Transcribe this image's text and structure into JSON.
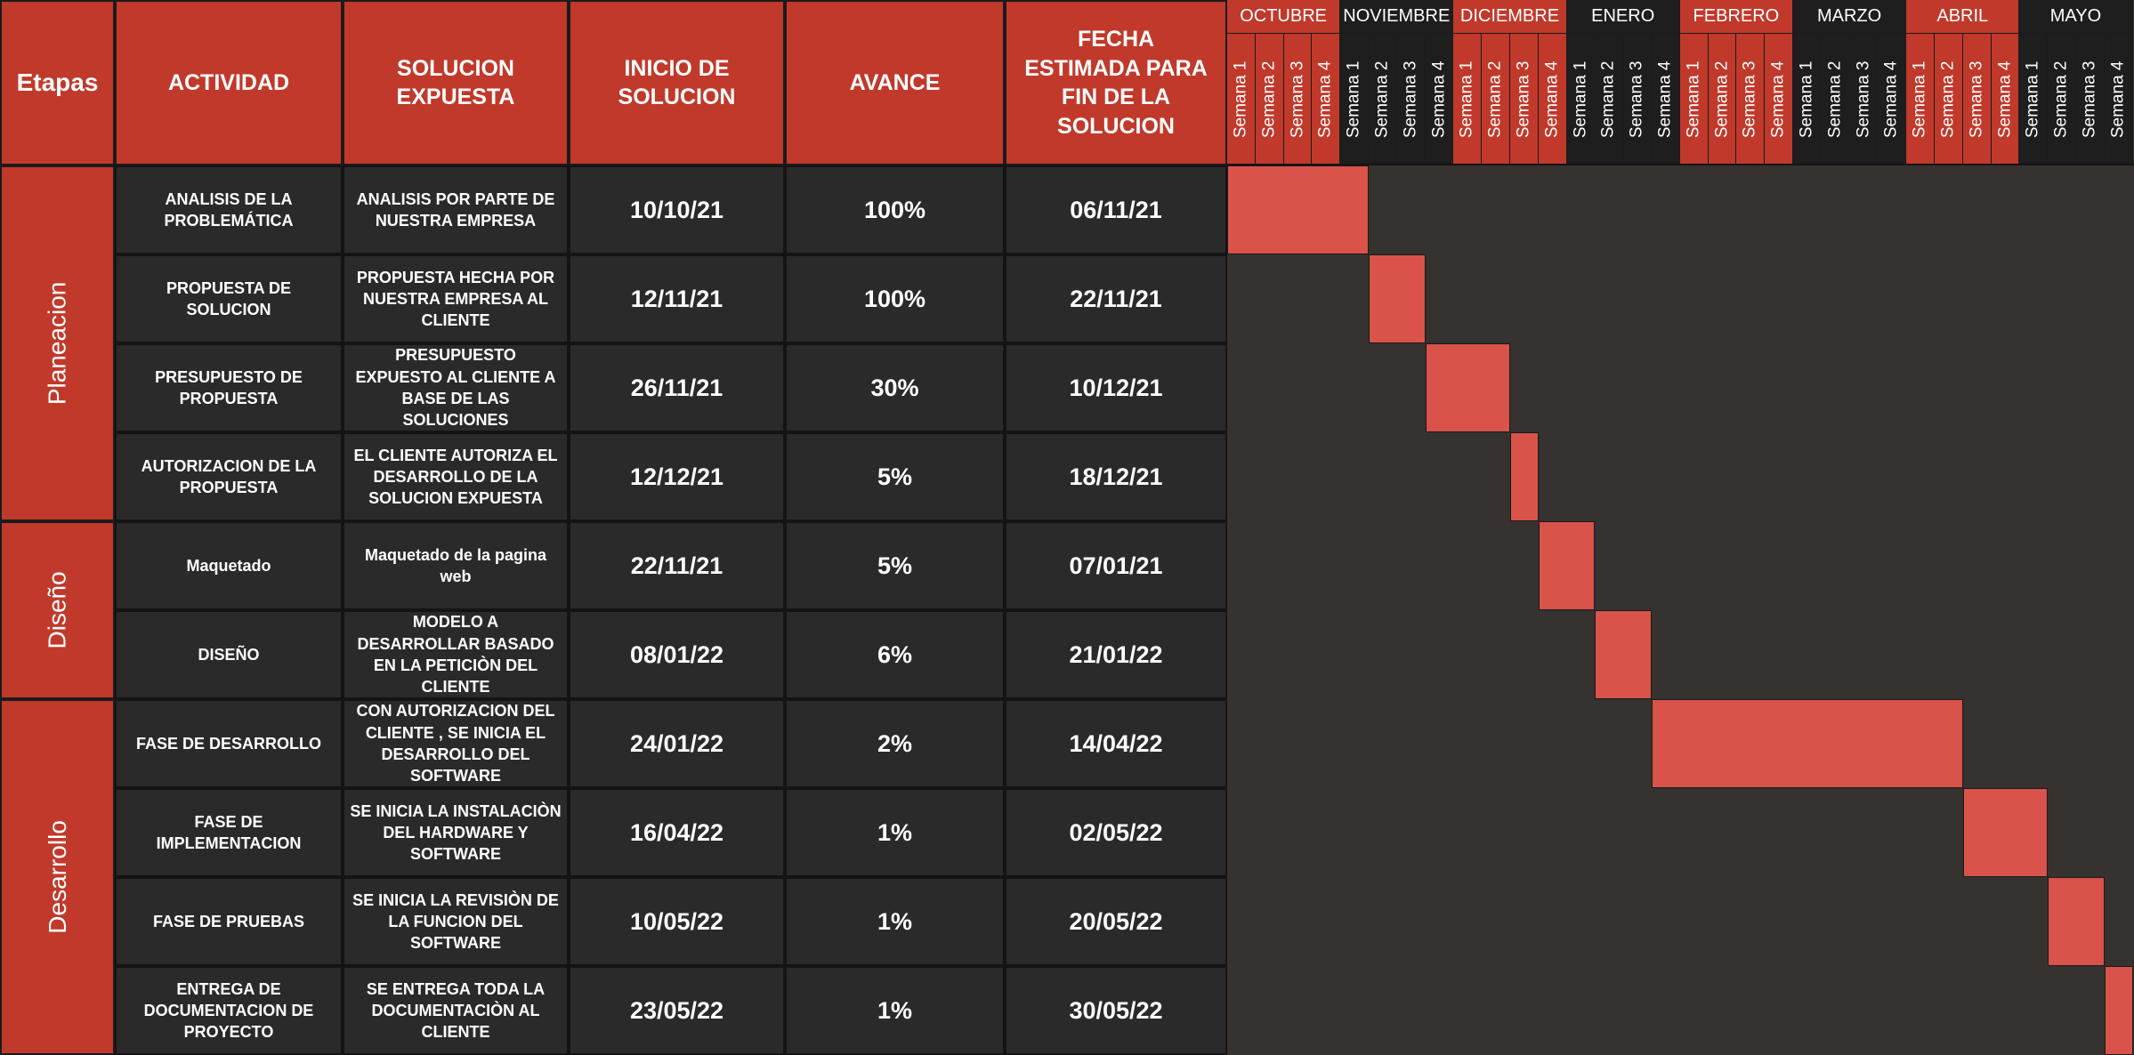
{
  "headers": {
    "etapas": "Etapas",
    "actividad": "ACTIVIDAD",
    "solucion": "SOLUCION EXPUESTA",
    "inicio": "INICIO DE SOLUCION",
    "avance": "AVANCE",
    "fin": "FECHA ESTIMADA PARA FIN DE LA SOLUCION"
  },
  "stages": [
    {
      "name": "Planeacion",
      "rows": 4
    },
    {
      "name": "Diseño",
      "rows": 2
    },
    {
      "name": "Desarrollo",
      "rows": 4
    }
  ],
  "months": [
    {
      "name": "OCTUBRE",
      "color": "#c0392b"
    },
    {
      "name": "NOVIEMBRE",
      "color": "#1e1e1e"
    },
    {
      "name": "DICIEMBRE",
      "color": "#c0392b"
    },
    {
      "name": "ENERO",
      "color": "#1e1e1e"
    },
    {
      "name": "FEBRERO",
      "color": "#c0392b"
    },
    {
      "name": "MARZO",
      "color": "#1e1e1e"
    },
    {
      "name": "ABRIL",
      "color": "#c0392b"
    },
    {
      "name": "MAYO",
      "color": "#1e1e1e"
    }
  ],
  "week_labels": [
    "Semana 1",
    "Semana 2",
    "Semana 3",
    "Semana 4"
  ],
  "colors": {
    "header_red": "#c0392b",
    "bar_red": "#d9534a",
    "row_bg": "#2a2a2a",
    "gantt_bg": "#353230"
  },
  "chart_data": {
    "type": "table",
    "rows": [
      {
        "actividad": "ANALISIS DE LA PROBLEMÁTICA",
        "solucion": "ANALISIS POR PARTE DE NUESTRA EMPRESA",
        "inicio": "10/10/21",
        "avance": "100%",
        "fin": "06/11/21",
        "start_week": 0,
        "end_week": 5
      },
      {
        "actividad": "PROPUESTA DE SOLUCION",
        "solucion": "PROPUESTA HECHA POR NUESTRA EMPRESA AL CLIENTE",
        "inicio": "12/11/21",
        "avance": "100%",
        "fin": "22/11/21",
        "start_week": 5,
        "end_week": 7
      },
      {
        "actividad": "PRESUPUESTO DE PROPUESTA",
        "solucion": "PRESUPUESTO EXPUESTO AL CLIENTE A BASE DE LAS SOLUCIONES",
        "inicio": "26/11/21",
        "avance": "30%",
        "fin": "10/12/21",
        "start_week": 7,
        "end_week": 10
      },
      {
        "actividad": "AUTORIZACION DE LA PROPUESTA",
        "solucion": "EL CLIENTE AUTORIZA EL DESARROLLO DE LA SOLUCION EXPUESTA",
        "inicio": "12/12/21",
        "avance": "5%",
        "fin": "18/12/21",
        "start_week": 10,
        "end_week": 11
      },
      {
        "actividad": "Maquetado",
        "solucion": "Maquetado de la pagina web",
        "inicio": "22/11/21",
        "avance": "5%",
        "fin": "07/01/21",
        "start_week": 11,
        "end_week": 13
      },
      {
        "actividad": "DISEÑO",
        "solucion": "MODELO A DESARROLLAR BASADO EN LA PETICIÒN DEL CLIENTE",
        "inicio": "08/01/22",
        "avance": "6%",
        "fin": "21/01/22",
        "start_week": 13,
        "end_week": 15
      },
      {
        "actividad": "FASE DE DESARROLLO",
        "solucion": "CON AUTORIZACION DEL CLIENTE , SE INICIA EL DESARROLLO DEL SOFTWARE",
        "inicio": "24/01/22",
        "avance": "2%",
        "fin": "14/04/22",
        "start_week": 15,
        "end_week": 26
      },
      {
        "actividad": "FASE DE IMPLEMENTACION",
        "solucion": "SE INICIA LA INSTALACIÒN DEL HARDWARE Y SOFTWARE",
        "inicio": "16/04/22",
        "avance": "1%",
        "fin": "02/05/22",
        "start_week": 26,
        "end_week": 29
      },
      {
        "actividad": "FASE DE PRUEBAS",
        "solucion": "SE INICIA LA REVISIÒN DE LA FUNCION DEL SOFTWARE",
        "inicio": "10/05/22",
        "avance": "1%",
        "fin": "20/05/22",
        "start_week": 29,
        "end_week": 31
      },
      {
        "actividad": "ENTREGA DE DOCUMENTACION DE PROYECTO",
        "solucion": "SE ENTREGA TODA LA DOCUMENTACIÒN AL CLIENTE",
        "inicio": "23/05/22",
        "avance": "1%",
        "fin": "30/05/22",
        "start_week": 31,
        "end_week": 32
      }
    ]
  }
}
